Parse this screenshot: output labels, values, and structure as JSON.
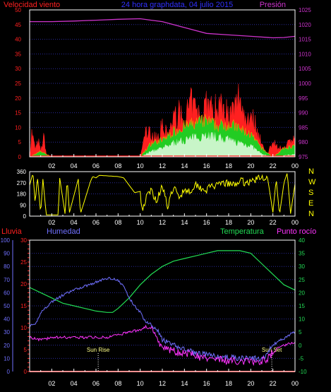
{
  "header": {
    "left_label": "Velocidad viento",
    "center_title": "24 hora graphdata, 04 julio 2015",
    "right_label": "Presión"
  },
  "colors": {
    "background": "#000000",
    "axis_white": "#ffffff",
    "grid_blue": "#2a2a9a",
    "wind_red": "#ff2020",
    "wind_orange": "#ff8c00",
    "gust_green": "#22cc22",
    "avg_pale_green": "#c8f5c8",
    "pressure_magenta": "#cc33cc",
    "direction_yellow": "#ffff00",
    "rain_red": "#ff2020",
    "humidity_blue": "#7070ff",
    "temperature_green": "#22dd55",
    "dewpoint_magenta": "#ff33ff",
    "sun_label_yellow": "#ffff88"
  },
  "chart_data": [
    {
      "type": "line",
      "name": "wind_and_pressure",
      "x_tick_labels": [
        "02",
        "04",
        "06",
        "08",
        "10",
        "12",
        "14",
        "16",
        "18",
        "20",
        "22",
        "00"
      ],
      "left_axis": {
        "label": "Velocidad viento",
        "ticks": [
          0,
          5,
          10,
          15,
          20,
          25,
          30,
          35,
          40,
          45,
          50
        ],
        "ylim": [
          0,
          50
        ]
      },
      "right_axis": {
        "label": "Presión",
        "ticks": [
          975,
          980,
          985,
          990,
          995,
          1000,
          1005,
          1010,
          1015,
          1020,
          1025
        ],
        "ylim": [
          975,
          1025
        ]
      },
      "series": [
        {
          "kind": "pressure",
          "x": [
            0,
            2,
            4,
            6,
            8,
            10,
            11,
            12,
            14,
            16,
            18,
            20,
            22,
            23,
            24
          ],
          "values": [
            1021,
            1021,
            1021.2,
            1021.5,
            1021.8,
            1022,
            1021.5,
            1021,
            1019,
            1017,
            1016.5,
            1016,
            1015.5,
            1015.6,
            1016
          ]
        },
        {
          "kind": "gust",
          "x": [
            0,
            0.2,
            0.5,
            0.8,
            1.0,
            1.3,
            1.5,
            1.8,
            2.0,
            10.0,
            10.5,
            11,
            11.5,
            12,
            12.5,
            13,
            13.5,
            14,
            14.5,
            15,
            15.5,
            16,
            16.5,
            17,
            17.5,
            18,
            18.5,
            19,
            19.5,
            20,
            20.5,
            21,
            21.5,
            22,
            22.5,
            23,
            23.5,
            24
          ],
          "values": [
            0,
            10,
            3,
            6,
            2,
            8,
            1,
            0,
            0,
            0,
            10,
            9,
            7,
            12,
            8,
            15,
            17,
            13,
            21,
            19,
            14,
            23,
            18,
            20,
            22,
            16,
            18,
            25,
            15,
            17,
            12,
            5,
            0,
            7,
            3,
            4,
            6,
            8
          ]
        },
        {
          "kind": "wind",
          "x": [
            0,
            1,
            2,
            10,
            11,
            12,
            13,
            14,
            15,
            16,
            17,
            18,
            19,
            20,
            21,
            22,
            23,
            24
          ],
          "values": [
            0,
            2,
            0,
            0,
            5,
            6,
            9,
            11,
            12,
            13,
            11,
            12,
            10,
            8,
            3,
            0,
            3,
            4
          ]
        },
        {
          "kind": "average",
          "x": [
            0,
            10,
            11,
            12,
            13,
            14,
            15,
            16,
            17,
            18,
            19,
            20,
            21,
            22,
            24
          ],
          "values": [
            0,
            0,
            2,
            3,
            5,
            6,
            7,
            8,
            7,
            6,
            5,
            4,
            1,
            0,
            1
          ]
        }
      ]
    },
    {
      "type": "line",
      "name": "wind_direction",
      "left_axis": {
        "ticks": [
          0,
          90,
          180,
          270,
          360
        ],
        "ylim": [
          0,
          360
        ]
      },
      "right_labels": [
        "N",
        "W",
        "S",
        "E",
        "N"
      ],
      "x_tick_labels": [
        "02",
        "04",
        "06",
        "08",
        "10",
        "12",
        "14",
        "16",
        "18",
        "20",
        "22",
        "00"
      ],
      "series": [
        {
          "kind": "direction",
          "x": [
            0,
            0.3,
            0.5,
            0.7,
            1.0,
            1.2,
            1.5,
            2.6,
            2.7,
            3.2,
            3.4,
            3.6,
            4.4,
            4.6,
            5.5,
            5.7,
            6.0,
            6.3,
            8.0,
            8.5,
            9.5,
            10.0,
            10.2,
            10.5,
            11.0,
            11.5,
            12.0,
            12.5,
            13.0,
            13.5,
            14.0,
            14.5,
            15.0,
            15.5,
            16.0,
            16.5,
            17.0,
            17.5,
            18.0,
            18.5,
            19.0,
            19.5,
            20.0,
            20.5,
            21.0,
            21.5,
            22.0,
            22.3,
            22.6,
            23.0,
            23.3,
            23.6,
            24.0
          ],
          "values": [
            250,
            350,
            100,
            320,
            20,
            300,
            10,
            10,
            320,
            20,
            300,
            30,
            300,
            20,
            280,
            320,
            310,
            330,
            320,
            310,
            190,
            200,
            40,
            140,
            210,
            120,
            260,
            60,
            240,
            150,
            220,
            200,
            260,
            230,
            210,
            250,
            240,
            270,
            260,
            250,
            290,
            270,
            280,
            300,
            310,
            320,
            30,
            300,
            10,
            270,
            350,
            20,
            260
          ]
        }
      ]
    },
    {
      "type": "line",
      "name": "rain_humidity_temperature_dewpoint",
      "left_axis_rain": {
        "label": "Lluvia",
        "ticks": [
          0,
          10,
          20,
          30,
          40,
          50,
          60,
          70,
          80,
          90,
          100
        ],
        "ylim": [
          0,
          100
        ]
      },
      "left_axis_humidity": {
        "label": "Humedad",
        "ticks": [
          0,
          5,
          10,
          15,
          20,
          25,
          30,
          35,
          40,
          45,
          50,
          55,
          60,
          65,
          70,
          75,
          80,
          85,
          90,
          95,
          100
        ]
      },
      "right_axis": {
        "label": "Temperatura",
        "ticks": [
          -10,
          -5,
          0,
          5,
          10,
          15,
          20,
          25,
          30,
          35,
          40
        ],
        "ylim": [
          -10,
          40
        ]
      },
      "right_axis_extra_label": "Punto rocío",
      "x_tick_labels": [
        "02",
        "04",
        "06",
        "08",
        "10",
        "12",
        "14",
        "16",
        "18",
        "20",
        "22",
        "00"
      ],
      "annotations": [
        {
          "text": "Sun Rise",
          "x": 6.2
        },
        {
          "text": "Sun Set",
          "x": 21.9
        }
      ],
      "series": [
        {
          "kind": "rain",
          "x": [
            0,
            24
          ],
          "values": [
            0,
            0
          ]
        },
        {
          "kind": "humidity",
          "x": [
            0,
            0.5,
            1,
            2,
            3,
            4,
            5,
            6,
            7,
            7.5,
            8,
            8.5,
            9,
            9.5,
            10,
            10.5,
            11,
            11.5,
            12,
            13,
            14,
            15,
            16,
            17,
            18,
            19,
            20,
            20.5,
            21,
            21.5,
            22,
            22.5,
            23,
            23.5,
            24
          ],
          "values": [
            35,
            35,
            45,
            53,
            58,
            62,
            65,
            68,
            71,
            71,
            69,
            65,
            56,
            50,
            45,
            38,
            36,
            33,
            24,
            20,
            17,
            14,
            13,
            11,
            11,
            10,
            10,
            10,
            9,
            14,
            20,
            23,
            25,
            28,
            30
          ]
        },
        {
          "kind": "temperature",
          "x": [
            0,
            1,
            2,
            3,
            4,
            5,
            6,
            7,
            7.5,
            8,
            9,
            10,
            11,
            12,
            13,
            14,
            15,
            16,
            17,
            18,
            19,
            20,
            21,
            22,
            23,
            24
          ],
          "values": [
            22,
            20,
            18,
            16,
            15,
            14,
            13,
            12.5,
            12.5,
            14,
            18,
            23,
            27,
            30,
            32,
            33,
            34,
            35,
            36,
            36,
            36,
            35,
            31,
            27,
            23,
            21
          ]
        },
        {
          "kind": "dewpoint",
          "x": [
            0,
            1,
            2,
            3,
            4,
            5,
            6,
            7,
            8,
            9,
            10,
            10.5,
            11,
            11.5,
            12,
            13,
            14,
            15,
            16,
            17,
            18,
            19,
            20,
            21,
            21.5,
            22,
            22.5,
            23,
            24
          ],
          "values": [
            3,
            2,
            3,
            3,
            3,
            3,
            3,
            3,
            4,
            5,
            6,
            7,
            6,
            3,
            -1,
            -2,
            -3,
            -4,
            -5,
            -5,
            -6,
            -6,
            -6,
            -6,
            -5,
            -3,
            -1,
            0,
            1
          ]
        }
      ]
    }
  ]
}
